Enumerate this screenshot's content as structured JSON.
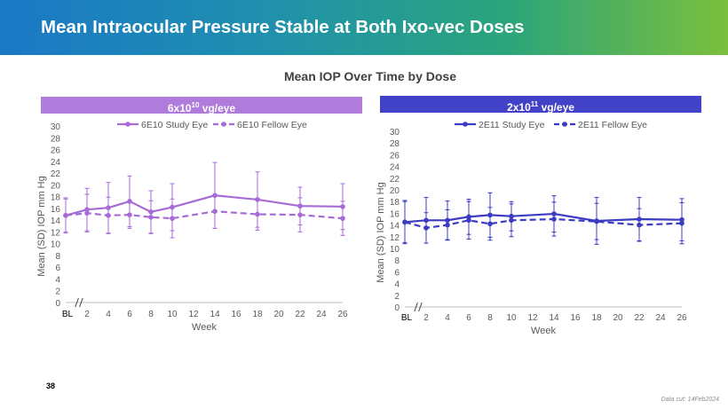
{
  "slide": {
    "title": "Mean Intraocular Pressure Stable at Both Ixo-vec Doses",
    "subtitle": "Mean IOP Over Time by Dose",
    "page_number": "38",
    "data_cut": "Data cut: 14Feb2024"
  },
  "panels": {
    "left": {
      "header_base": "6x10",
      "header_exp": "10",
      "header_unit": " vg/eye"
    },
    "right": {
      "header_base": "2x10",
      "header_exp": "11",
      "header_unit": " vg/eye"
    }
  },
  "colors": {
    "left_series": "#a66bd6",
    "right_series": "#3b3bc4",
    "left_header": "#b07cdb",
    "right_header": "#4242c8",
    "axis": "#bfbfbf",
    "tick_text": "#595959"
  },
  "chart_data": [
    {
      "type": "line",
      "title": "6x10^10 vg/eye",
      "xlabel": "Week",
      "ylabel": "Mean (SD) IOP mm Hg",
      "categories": [
        "BL",
        "2",
        "4",
        "6",
        "8",
        "10",
        "12",
        "14",
        "16",
        "18",
        "20",
        "22",
        "24",
        "26"
      ],
      "x": [
        0,
        2,
        4,
        6,
        8,
        10,
        12,
        14,
        16,
        18,
        20,
        22,
        24,
        26
      ],
      "ylim": [
        0,
        30
      ],
      "yticks": [
        0,
        2,
        4,
        6,
        8,
        10,
        12,
        14,
        16,
        18,
        20,
        22,
        24,
        26,
        28,
        30
      ],
      "legend_position": "top",
      "series": [
        {
          "name": "6E10 Study Eye",
          "style": "solid",
          "x": [
            0,
            2,
            4,
            6,
            8,
            10,
            14,
            18,
            22,
            26
          ],
          "values": [
            14.8,
            15.8,
            16.1,
            17.2,
            15.4,
            16.2,
            18.2,
            17.5,
            16.4,
            16.3
          ],
          "sd": [
            3.0,
            3.6,
            4.3,
            4.3,
            3.6,
            4.0,
            5.6,
            4.7,
            3.2,
            3.9
          ]
        },
        {
          "name": "6E10 Fellow Eye",
          "style": "dashed",
          "x": [
            0,
            2,
            4,
            6,
            8,
            10,
            14,
            18,
            22,
            26
          ],
          "values": [
            14.8,
            15.2,
            14.8,
            14.9,
            14.5,
            14.3,
            15.5,
            15.0,
            14.9,
            14.3
          ],
          "sd": [
            2.8,
            3.2,
            3.1,
            2.3,
            2.8,
            3.3,
            2.9,
            2.7,
            2.9,
            2.9
          ]
        }
      ]
    },
    {
      "type": "line",
      "title": "2x10^11 vg/eye",
      "xlabel": "Week",
      "ylabel": "Mean (SD) IOP mm Hg",
      "categories": [
        "BL",
        "2",
        "4",
        "6",
        "8",
        "10",
        "12",
        "14",
        "16",
        "18",
        "20",
        "22",
        "24",
        "26"
      ],
      "x": [
        0,
        2,
        4,
        6,
        8,
        10,
        12,
        14,
        16,
        18,
        20,
        22,
        24,
        26
      ],
      "ylim": [
        0,
        30
      ],
      "yticks": [
        0,
        2,
        4,
        6,
        8,
        10,
        12,
        14,
        16,
        18,
        20,
        22,
        24,
        26,
        28,
        30
      ],
      "legend_position": "top",
      "series": [
        {
          "name": "2E11 Study Eye",
          "style": "solid",
          "x": [
            0,
            2,
            4,
            6,
            8,
            10,
            14,
            18,
            22,
            26
          ],
          "values": [
            14.5,
            14.8,
            14.8,
            15.4,
            15.7,
            15.5,
            15.9,
            14.7,
            15.0,
            14.9
          ],
          "sd": [
            3.7,
            3.9,
            3.3,
            3.0,
            3.8,
            2.5,
            3.1,
            4.0,
            3.7,
            3.6
          ]
        },
        {
          "name": "2E11 Fellow Eye",
          "style": "dashed",
          "x": [
            0,
            2,
            4,
            6,
            8,
            10,
            14,
            18,
            22,
            26
          ],
          "values": [
            14.5,
            13.5,
            14.0,
            14.8,
            14.2,
            14.8,
            15.0,
            14.6,
            14.0,
            14.3
          ],
          "sd": [
            3.5,
            2.6,
            2.6,
            3.2,
            2.8,
            2.8,
            2.9,
            3.1,
            2.8,
            3.5
          ]
        }
      ]
    }
  ]
}
